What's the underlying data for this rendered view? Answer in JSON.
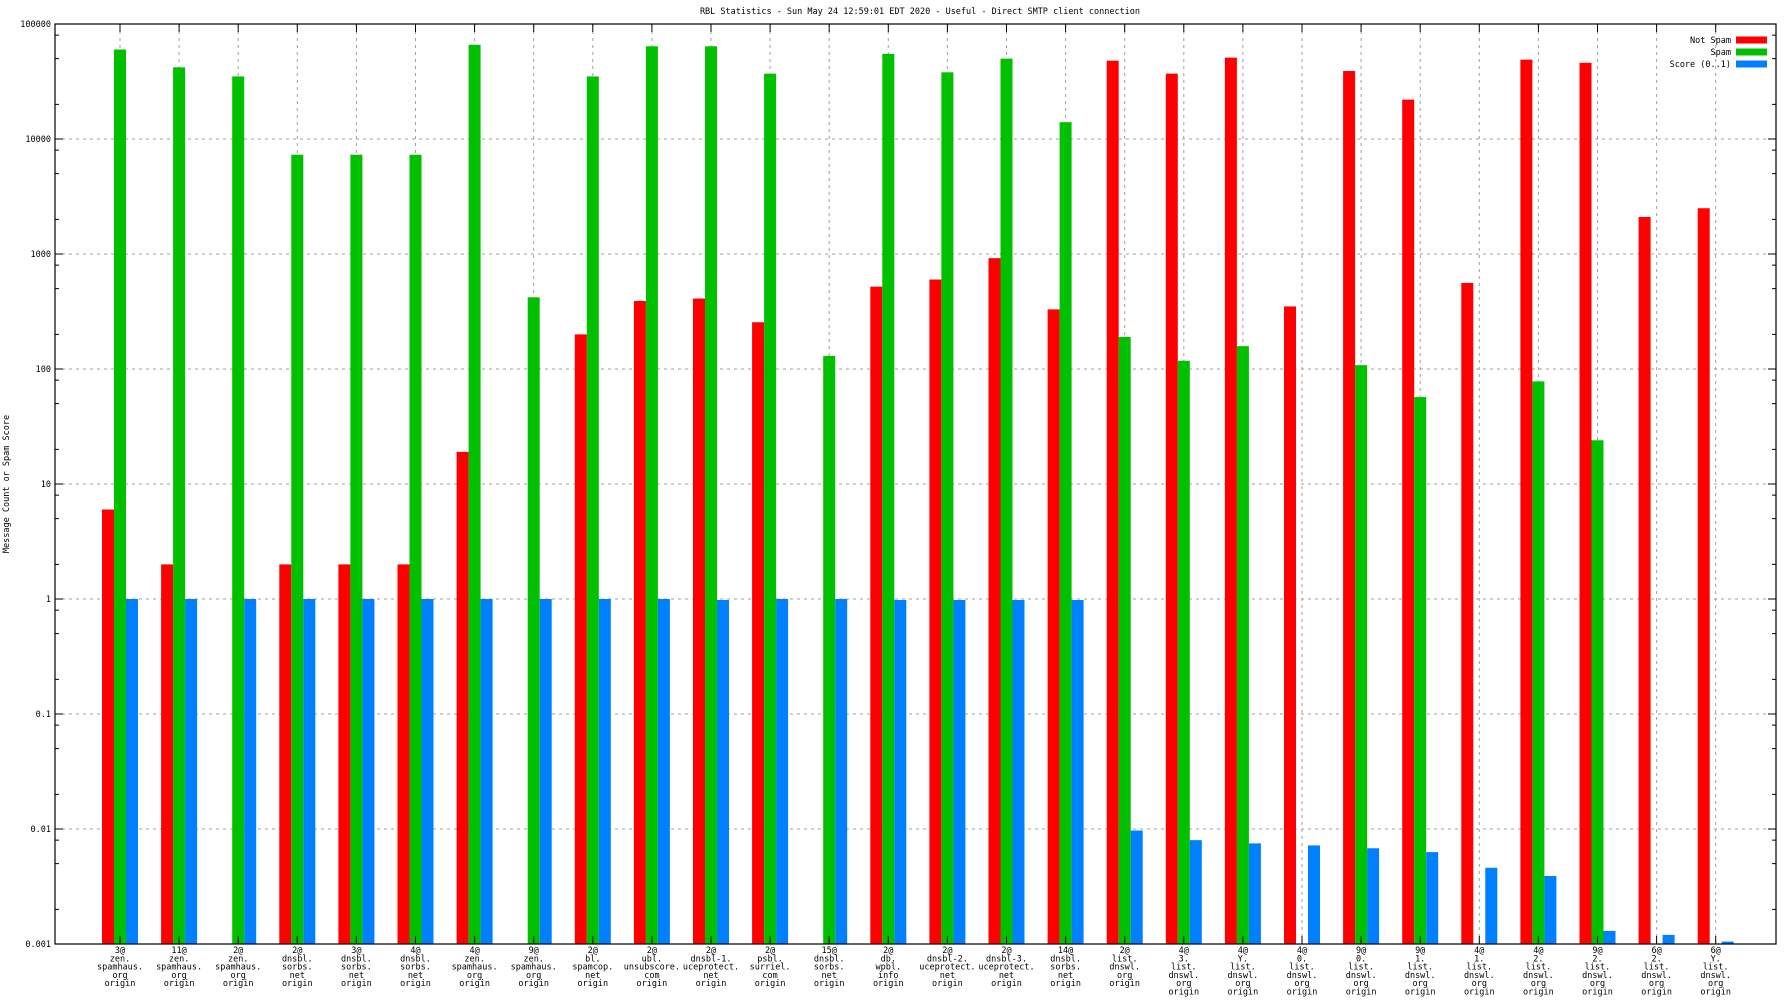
{
  "chart_data": {
    "type": "bar",
    "title": "RBL Statistics - Sun May 24 12:59:01 EDT 2020 - Useful - Direct SMTP client connection",
    "xlabel": "",
    "ylabel": "Message Count or Spam Score",
    "yscale": "log",
    "ylim": [
      0.001,
      100000
    ],
    "yticks": [
      "100000",
      "10000",
      "1000",
      "100",
      "10",
      "1",
      "0.1",
      "0.01",
      "0.001"
    ],
    "grid": true,
    "legend_position": "top-right",
    "categories": [
      [
        "3@",
        "zen.",
        "spamhaus.",
        "org",
        "origin"
      ],
      [
        "11@",
        "zen.",
        "spamhaus.",
        "org",
        "origin"
      ],
      [
        "2@",
        "zen.",
        "spamhaus.",
        "org",
        "origin"
      ],
      [
        "2@",
        "dnsbl.",
        "sorbs.",
        "net",
        "origin"
      ],
      [
        "3@",
        "dnsbl.",
        "sorbs.",
        "net",
        "origin"
      ],
      [
        "4@",
        "dnsbl.",
        "sorbs.",
        "net",
        "origin"
      ],
      [
        "4@",
        "zen.",
        "spamhaus.",
        "org",
        "origin"
      ],
      [
        "9@",
        "zen.",
        "spamhaus.",
        "org",
        "origin"
      ],
      [
        "2@",
        "bl.",
        "spamcop.",
        "net",
        "origin"
      ],
      [
        "2@",
        "ubl.",
        "unsubscore.",
        "com",
        "origin"
      ],
      [
        "2@",
        "dnsbl-1.",
        "uceprotect.",
        "net",
        "origin"
      ],
      [
        "2@",
        "psbl.",
        "surriel.",
        "com",
        "origin"
      ],
      [
        "15@",
        "dnsbl.",
        "sorbs.",
        "net",
        "origin"
      ],
      [
        "2@",
        "db.",
        "wpbl.",
        "info",
        "origin"
      ],
      [
        "2@",
        "dnsbl-2.",
        "uceprotect.",
        "net",
        "origin"
      ],
      [
        "2@",
        "dnsbl-3.",
        "uceprotect.",
        "net",
        "origin"
      ],
      [
        "14@",
        "dnsbl.",
        "sorbs.",
        "net",
        "origin"
      ],
      [
        "2@",
        "list.",
        "dnswl.",
        "org",
        "origin"
      ],
      [
        "4@",
        "3.",
        "list.",
        "dnswl.",
        "org",
        "origin"
      ],
      [
        "4@",
        "Y.",
        "list.",
        "dnswl.",
        "org",
        "origin"
      ],
      [
        "4@",
        "0.",
        "list.",
        "dnswl.",
        "org",
        "origin"
      ],
      [
        "9@",
        "0.",
        "list.",
        "dnswl.",
        "org",
        "origin"
      ],
      [
        "9@",
        "1.",
        "list.",
        "dnswl.",
        "org",
        "origin"
      ],
      [
        "4@",
        "1.",
        "list.",
        "dnswl.",
        "org",
        "origin"
      ],
      [
        "4@",
        "2.",
        "list.",
        "dnswl.",
        "org",
        "origin"
      ],
      [
        "9@",
        "2.",
        "list.",
        "dnswl.",
        "org",
        "origin"
      ],
      [
        "6@",
        "2.",
        "list.",
        "dnswl.",
        "org",
        "origin"
      ],
      [
        "6@",
        "Y.",
        "list.",
        "dnswl.",
        "org",
        "origin"
      ]
    ],
    "series": [
      {
        "name": "Not Spam",
        "color": "#ff0000",
        "values": [
          6,
          2,
          null,
          2,
          2,
          2,
          19,
          null,
          200,
          390,
          410,
          255,
          null,
          520,
          600,
          920,
          330,
          48000,
          37000,
          51000,
          350,
          39000,
          22000,
          560,
          49000,
          46000,
          2100,
          2500
        ]
      },
      {
        "name": "Spam",
        "color": "#00c000",
        "values": [
          60000,
          42000,
          35000,
          7300,
          7300,
          7300,
          66000,
          420,
          35000,
          64000,
          64000,
          37000,
          130,
          55000,
          38000,
          50000,
          14000,
          190,
          118,
          158,
          null,
          108,
          57,
          null,
          78,
          24,
          null,
          null
        ]
      },
      {
        "name": "Score (0..1)",
        "color": "#0080ff",
        "values": [
          1,
          1,
          1,
          1,
          1,
          1,
          1,
          1,
          1,
          1,
          0.98,
          1,
          1,
          0.98,
          0.98,
          0.98,
          0.98,
          0.0097,
          0.008,
          0.0075,
          0.0072,
          0.0068,
          0.0063,
          0.0046,
          0.0039,
          0.0013,
          0.0012,
          0.00105
        ]
      }
    ]
  }
}
